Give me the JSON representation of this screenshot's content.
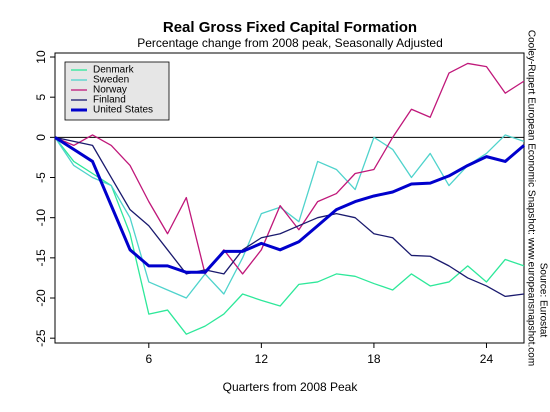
{
  "chart_data": {
    "type": "line",
    "title": "Real Gross Fixed Capital Formation",
    "subtitle": "Percentage change from 2008 peak, Seasonally Adjusted",
    "x_label": "Quarters from 2008 Peak",
    "annotations": [
      "Cooley-Rupert European Economic Snapshot: www.europeansnapshot.com",
      "Source: Eurostat"
    ],
    "x": [
      1,
      2,
      3,
      4,
      5,
      6,
      7,
      8,
      9,
      10,
      11,
      12,
      13,
      14,
      15,
      16,
      17,
      18,
      19,
      20,
      21,
      22,
      23,
      24,
      25,
      26
    ],
    "xlim": [
      1,
      26
    ],
    "xticks": [
      6,
      12,
      18,
      24
    ],
    "ylim": [
      -25.6,
      10.5
    ],
    "yticks": [
      -25,
      -20,
      -15,
      -10,
      -5,
      0,
      5,
      10
    ],
    "hline": 0,
    "legend": "top-left",
    "series": [
      {
        "name": "Denmark",
        "color": "#2ee89a",
        "width": 1.3,
        "values": [
          0,
          -3,
          -4.5,
          -6,
          -12,
          -22,
          -21.5,
          -24.5,
          -23.5,
          -22,
          -19.5,
          -20.3,
          -21,
          -18.3,
          -18,
          -17,
          -17.3,
          -18.2,
          -19,
          -17,
          -18.5,
          -18,
          -16,
          -18,
          -15.2,
          -16
        ]
      },
      {
        "name": "Sweden",
        "color": "#4fd3cc",
        "width": 1.3,
        "values": [
          0,
          -3.5,
          -5,
          -6,
          -10,
          -18,
          -19,
          -20,
          -17,
          -19.5,
          -15,
          -9.5,
          -8.7,
          -10.5,
          -3,
          -4,
          -6.5,
          0,
          -1.5,
          -5,
          -2,
          -6,
          -3.5,
          -2,
          0.3,
          -0.5
        ]
      },
      {
        "name": "Norway",
        "color": "#c0187a",
        "width": 1.3,
        "values": [
          0,
          -1,
          0.3,
          -1,
          -3.5,
          -8,
          -12,
          -7.5,
          -17,
          -14,
          -17,
          -14,
          -8.5,
          -11.5,
          -8,
          -7,
          -4.5,
          -4,
          0,
          3.5,
          2.5,
          8,
          9.2,
          8.8,
          5.5,
          7
        ]
      },
      {
        "name": "Finland",
        "color": "#1a1a6e",
        "width": 1.3,
        "values": [
          0,
          -0.5,
          -1,
          -5,
          -9,
          -11,
          -14,
          -17,
          -16.5,
          -17,
          -14,
          -12.5,
          -12,
          -11,
          -10,
          -9.5,
          -10,
          -12,
          -12.5,
          -14.7,
          -14.8,
          -16,
          -17.5,
          -18.5,
          -19.8,
          -19.5
        ]
      },
      {
        "name": "United States",
        "color": "#0000cc",
        "width": 3,
        "values": [
          0,
          -1.5,
          -3,
          -8.5,
          -14,
          -16,
          -16,
          -16.8,
          -16.8,
          -14.2,
          -14.2,
          -13.2,
          -14,
          -13,
          -11,
          -9,
          -8,
          -7.3,
          -6.8,
          -5.8,
          -5.7,
          -4.8,
          -3.5,
          -2.4,
          -3,
          -1
        ]
      }
    ]
  }
}
